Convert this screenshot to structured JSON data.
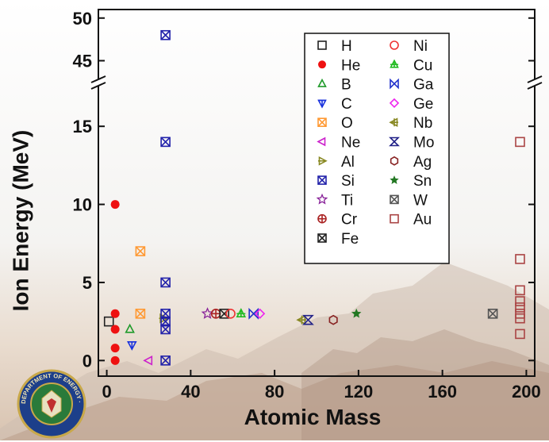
{
  "chart_data": {
    "type": "scatter",
    "title": "",
    "xlabel": "Atomic Mass",
    "ylabel": "Ion Energy (MeV)",
    "xlim": [
      -4,
      204
    ],
    "ylim_lower": [
      -1,
      17.5
    ],
    "ylim_upper": [
      43,
      51
    ],
    "axis_break": true,
    "x_ticks": [
      "0",
      "40",
      "80",
      "120",
      "160",
      "200"
    ],
    "y_ticks_lower": [
      "0",
      "5",
      "10",
      "15"
    ],
    "y_ticks_upper": [
      "45",
      "50"
    ],
    "grid": false,
    "legend_position": "top-right",
    "series": [
      {
        "name": "H",
        "marker": "square-open",
        "color": "#222222",
        "points": [
          [
            1,
            2.5
          ]
        ]
      },
      {
        "name": "He",
        "marker": "circle-filled",
        "color": "#ee1111",
        "points": [
          [
            4,
            10
          ],
          [
            4,
            3
          ],
          [
            4,
            2
          ],
          [
            4,
            0.8
          ],
          [
            4,
            0
          ]
        ]
      },
      {
        "name": "B",
        "marker": "triangle-open",
        "color": "#1f9a2a",
        "points": [
          [
            11,
            2
          ]
        ]
      },
      {
        "name": "C",
        "marker": "tri-down-bar",
        "color": "#1a33dd",
        "points": [
          [
            12,
            1
          ]
        ]
      },
      {
        "name": "O",
        "marker": "square-x",
        "color": "#ff9933",
        "points": [
          [
            16,
            7
          ],
          [
            16,
            3
          ]
        ]
      },
      {
        "name": "Ne",
        "marker": "tri-left",
        "color": "#cc22cc",
        "points": [
          [
            20,
            0
          ]
        ]
      },
      {
        "name": "Al",
        "marker": "tri-right-bar",
        "color": "#888822",
        "points": [
          [
            27,
            2.7
          ]
        ]
      },
      {
        "name": "Si",
        "marker": "square-x",
        "color": "#2222aa",
        "points": [
          [
            28,
            48
          ],
          [
            28,
            14
          ],
          [
            28,
            5
          ],
          [
            28,
            3
          ],
          [
            28,
            2.5
          ],
          [
            28,
            2
          ],
          [
            28,
            0
          ]
        ]
      },
      {
        "name": "Ti",
        "marker": "star-open",
        "color": "#882299",
        "points": [
          [
            48,
            3
          ]
        ]
      },
      {
        "name": "Cr",
        "marker": "circle-plus",
        "color": "#aa2222",
        "points": [
          [
            52,
            3
          ]
        ]
      },
      {
        "name": "Fe",
        "marker": "square-x",
        "color": "#222222",
        "points": [
          [
            56,
            3
          ]
        ]
      },
      {
        "name": "Ni",
        "marker": "circle-open",
        "color": "#ee3333",
        "points": [
          [
            59,
            3
          ]
        ]
      },
      {
        "name": "Cu",
        "marker": "tri-up-bar",
        "color": "#22bb22",
        "points": [
          [
            64,
            3
          ]
        ]
      },
      {
        "name": "Ga",
        "marker": "bowtie",
        "color": "#2233cc",
        "points": [
          [
            70,
            3
          ]
        ]
      },
      {
        "name": "Ge",
        "marker": "diamond-open",
        "color": "#ee22ee",
        "points": [
          [
            73,
            3
          ]
        ]
      },
      {
        "name": "Nb",
        "marker": "tri-left-bar",
        "color": "#888822",
        "points": [
          [
            93,
            2.6
          ]
        ]
      },
      {
        "name": "Mo",
        "marker": "bowtie-rot",
        "color": "#222288",
        "points": [
          [
            96,
            2.6
          ]
        ]
      },
      {
        "name": "Ag",
        "marker": "hexagon-open",
        "color": "#882222",
        "points": [
          [
            108,
            2.6
          ]
        ]
      },
      {
        "name": "Sn",
        "marker": "star-filled",
        "color": "#227722",
        "points": [
          [
            119,
            3
          ]
        ]
      },
      {
        "name": "W",
        "marker": "square-x",
        "color": "#555555",
        "points": [
          [
            184,
            3
          ]
        ]
      },
      {
        "name": "Au",
        "marker": "square-open",
        "color": "#aa4444",
        "points": [
          [
            197,
            14
          ],
          [
            197,
            6.5
          ],
          [
            197,
            4.5
          ],
          [
            197,
            3.8
          ],
          [
            197,
            3.4
          ],
          [
            197,
            3
          ],
          [
            197,
            2.7
          ],
          [
            197,
            1.7
          ]
        ]
      }
    ]
  },
  "colors": {
    "axis": "#111111",
    "mountain_far": "#cdbdb0",
    "mountain_near": "#b89a85"
  },
  "logo": {
    "icon": "doe-seal-icon",
    "text": "DEPARTMENT OF ENERGY · UNITED STATES OF AMERICA"
  }
}
